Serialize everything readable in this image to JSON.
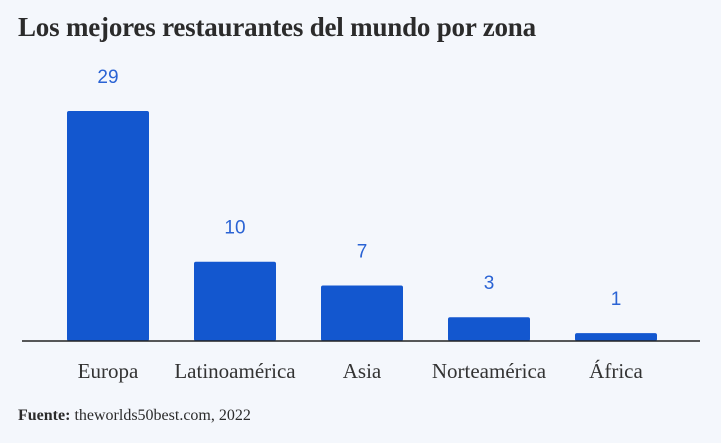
{
  "chart_data": {
    "type": "bar",
    "title": "Los mejores restaurantes del mundo por zona",
    "categories": [
      "Europa",
      "Latinoamérica",
      "Asia",
      "Norteamérica",
      "África"
    ],
    "values": [
      29,
      10,
      7,
      3,
      1
    ],
    "xlabel": "",
    "ylabel": "",
    "ylim": [
      0,
      29
    ],
    "grid": false,
    "legend": "none",
    "bar_color": "#1357cf",
    "label_color": "#2a63d4"
  },
  "source": {
    "label": "Fuente:",
    "text": "theworlds50best.com, 2022"
  }
}
